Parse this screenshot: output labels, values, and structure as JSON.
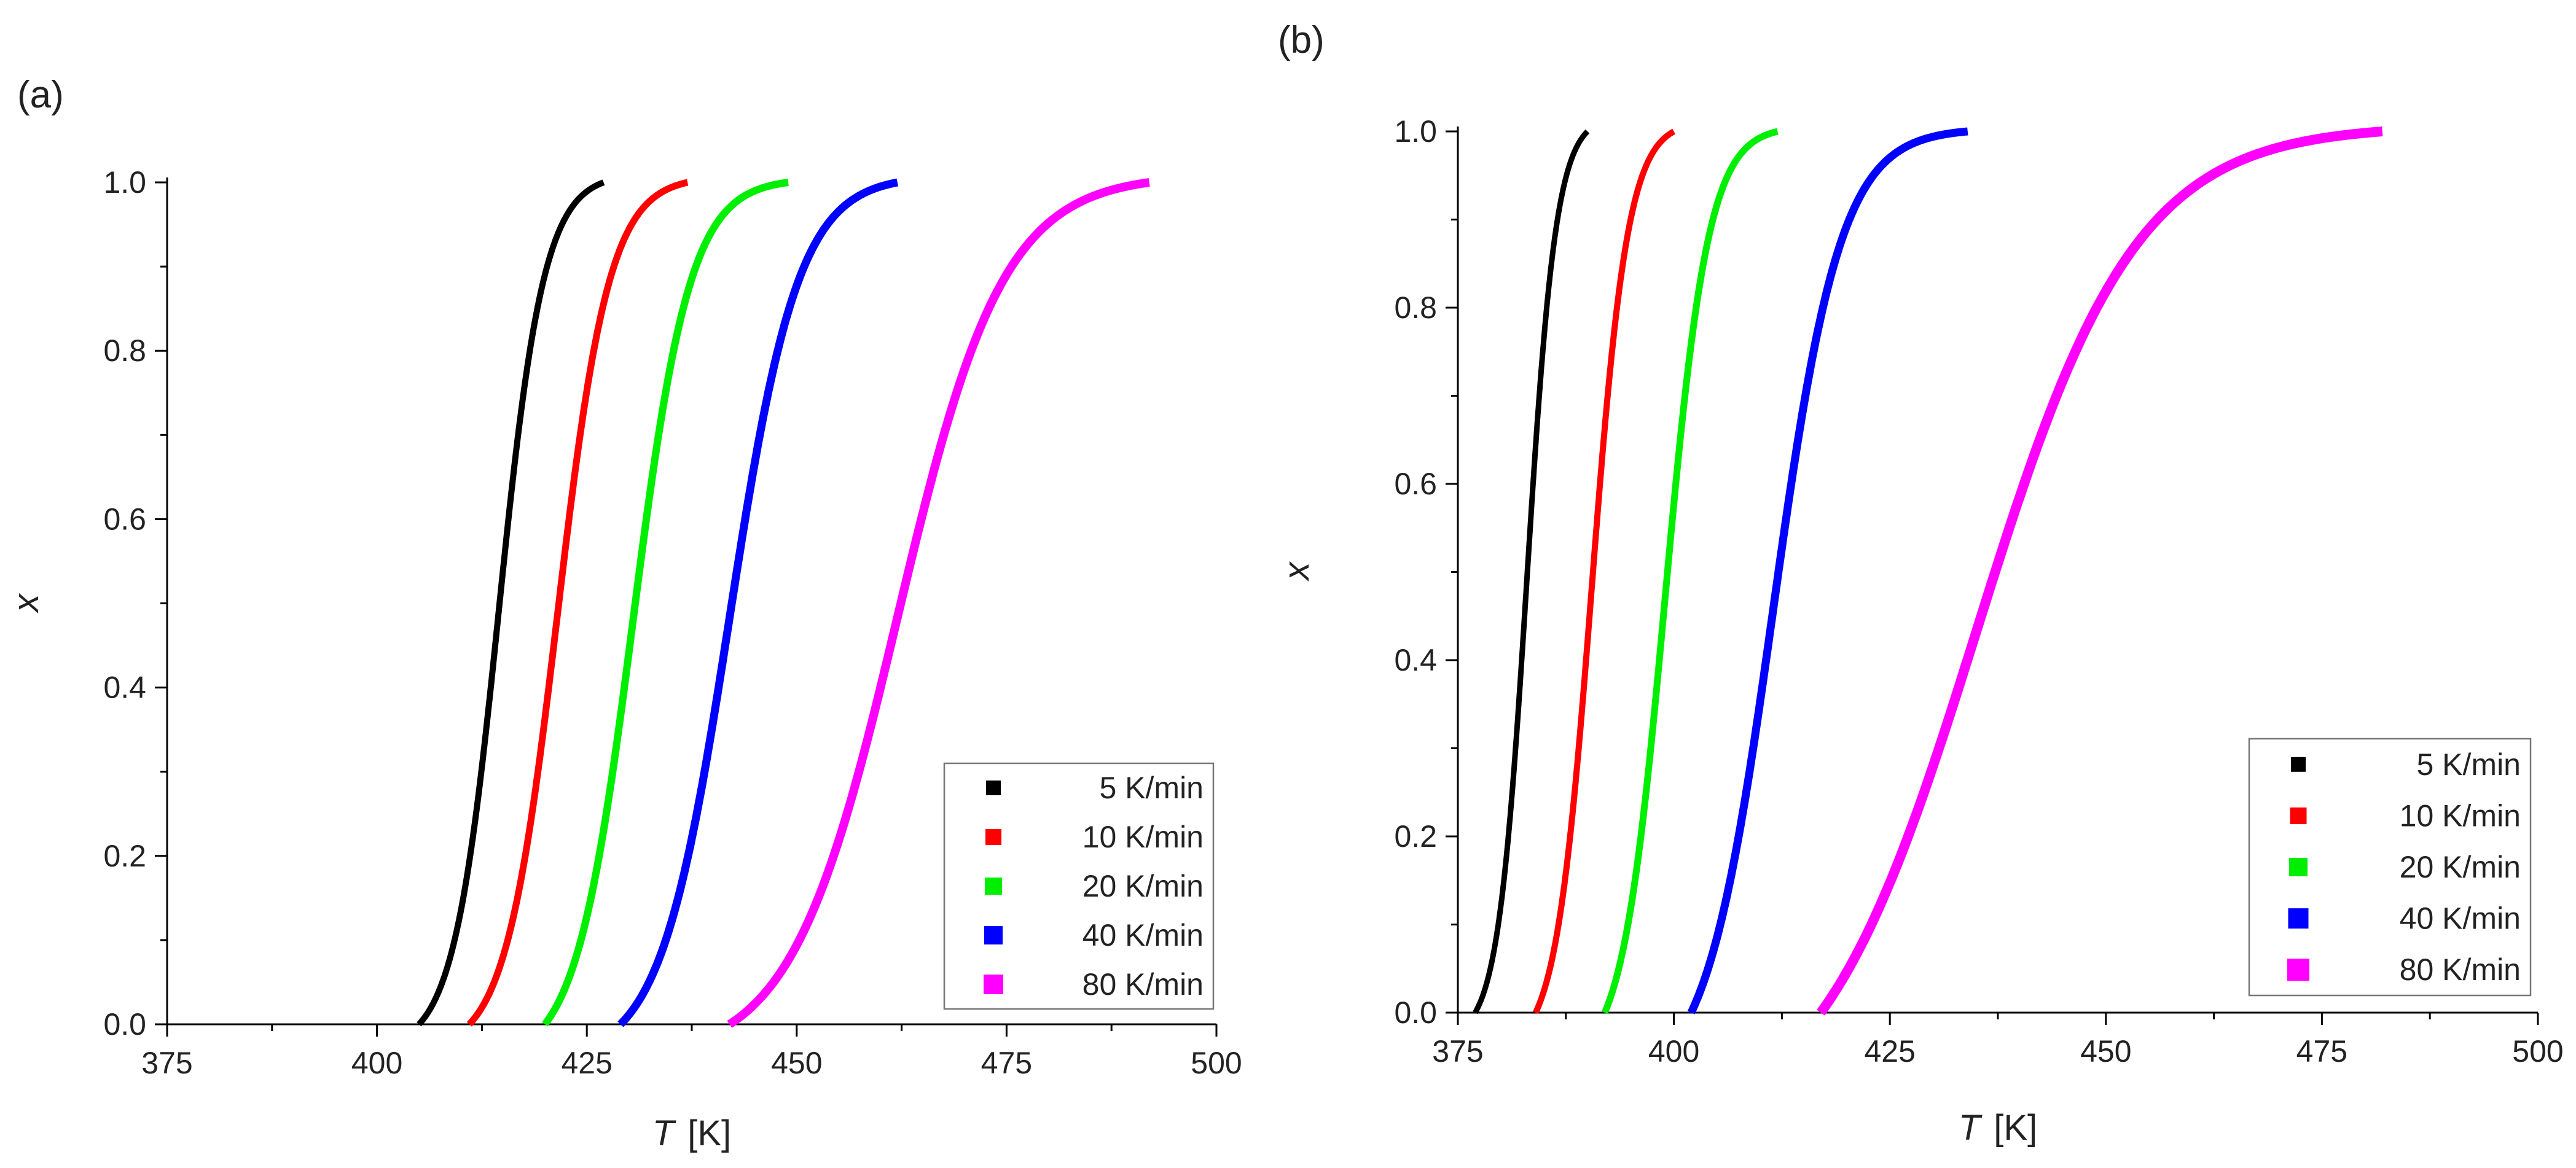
{
  "chart_data": [
    {
      "type": "line",
      "panel_label": "(a)",
      "xlabel_symbol": "T",
      "xlabel_unit": "[K]",
      "ylabel": "x",
      "xlim": [
        375,
        500
      ],
      "ylim": [
        0,
        1.0
      ],
      "xticks": [
        "375",
        "400",
        "425",
        "450",
        "475",
        "500"
      ],
      "yticks": [
        "0.0",
        "0.2",
        "0.4",
        "0.6",
        "0.8",
        "1.0"
      ],
      "grid": false,
      "legend_position": "bottom-right",
      "series": [
        {
          "name": "5 K/min",
          "color": "#000000",
          "start": 405,
          "end": 427,
          "midpoint": 414.5,
          "width": 2.7
        },
        {
          "name": "10 K/min",
          "color": "#ff0000",
          "start": 411,
          "end": 437,
          "midpoint": 421.5,
          "width": 3.1
        },
        {
          "name": "20 K/min",
          "color": "#00ee00",
          "start": 420,
          "end": 449,
          "midpoint": 430.5,
          "width": 3.4
        },
        {
          "name": "40 K/min",
          "color": "#0000ff",
          "start": 429,
          "end": 462,
          "midpoint": 442.0,
          "width": 4.1
        },
        {
          "name": "80 K/min",
          "color": "#ff00ff",
          "start": 442,
          "end": 492,
          "midpoint": 462.0,
          "width": 6.3
        }
      ]
    },
    {
      "type": "line",
      "panel_label": "(b)",
      "xlabel_symbol": "T",
      "xlabel_unit": "[K]",
      "ylabel": "x",
      "xlim": [
        375,
        500
      ],
      "ylim": [
        0,
        1.0
      ],
      "xticks": [
        "375",
        "400",
        "425",
        "450",
        "475",
        "500"
      ],
      "yticks": [
        "0.0",
        "0.2",
        "0.4",
        "0.6",
        "0.8",
        "1.0"
      ],
      "grid": false,
      "legend_position": "bottom-right",
      "series": [
        {
          "name": "5 K/min",
          "color": "#000000",
          "start": 377,
          "end": 390,
          "midpoint": 383.0,
          "width": 1.7
        },
        {
          "name": "10 K/min",
          "color": "#ff0000",
          "start": 384,
          "end": 400,
          "midpoint": 390.5,
          "width": 2.1
        },
        {
          "name": "20 K/min",
          "color": "#00ee00",
          "start": 392,
          "end": 412,
          "midpoint": 399.0,
          "width": 2.5
        },
        {
          "name": "40 K/min",
          "color": "#0000ff",
          "start": 402,
          "end": 434,
          "midpoint": 411.5,
          "width": 3.9
        },
        {
          "name": "80 K/min",
          "color": "#ff00ff",
          "start": 417,
          "end": 482,
          "midpoint": 435.0,
          "width": 9.2
        }
      ]
    }
  ]
}
